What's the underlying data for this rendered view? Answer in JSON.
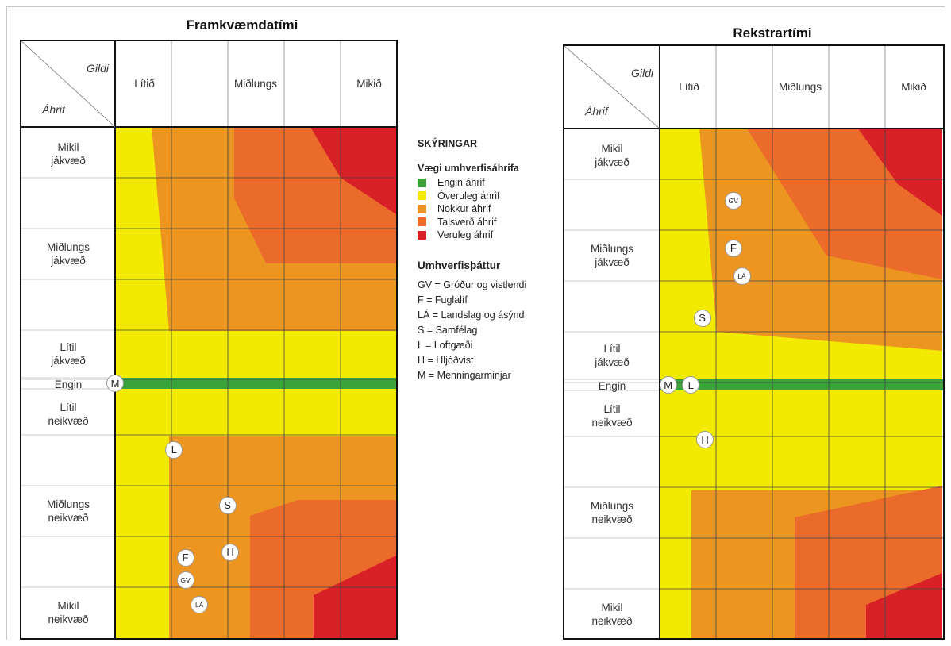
{
  "corner": {
    "top": "Gildi",
    "bottom": "Áhrif"
  },
  "columns": [
    "Lítið",
    "Miðlungs",
    "Mikið"
  ],
  "rows": [
    "Mikil\njákvæð",
    "Miðlungs\njákvæð",
    "Lítil\njákvæð",
    "Engin",
    "Lítil\nneikvæð",
    "Miðlungs\nneikvæð",
    "Mikil\nneikvæð"
  ],
  "colors": {
    "engin": "#3aa33a",
    "overuleg": "#f2ea00",
    "nokkur": "#ec9621",
    "talsverd": "#ea6b2a",
    "veruleg": "#d82027"
  },
  "legend": {
    "heading": "SKÝRINGAR",
    "weight_heading": "Vægi umhverfisáhrifa",
    "items": [
      {
        "label": "Engin áhrif",
        "color": "#3aa33a"
      },
      {
        "label": "Óveruleg áhrif",
        "color": "#f2ea00"
      },
      {
        "label": "Nokkur áhrif",
        "color": "#ec9621"
      },
      {
        "label": "Talsverð áhrif",
        "color": "#ea6b2a"
      },
      {
        "label": "Veruleg áhrif",
        "color": "#d82027"
      }
    ],
    "factor_heading": "Umhverfisþáttur",
    "factors": [
      "GV = Gróður og vistlendi",
      "F = Fuglalíf",
      "LÁ = Landslag og ásýnd",
      "S = Samfélag",
      "L = Loftgæði",
      "H = Hljóðvist",
      "M = Menningarminjar"
    ]
  },
  "chart_data": [
    {
      "type": "scatter",
      "title": "Framkvæmdatími",
      "xlabel": "Gildi",
      "ylabel": "Áhrif",
      "points": [
        {
          "label": "M",
          "x": 0.0,
          "y": 0.0
        },
        {
          "label": "L",
          "x": 1.05,
          "y": -1.2
        },
        {
          "label": "S",
          "x": 2.0,
          "y": -2.2
        },
        {
          "label": "H",
          "x": 2.05,
          "y": -3.05
        },
        {
          "label": "F",
          "x": 1.25,
          "y": -3.15
        },
        {
          "label": "GV",
          "x": 1.25,
          "y": -3.55
        },
        {
          "label": "LÁ",
          "x": 1.5,
          "y": -4.0
        }
      ]
    },
    {
      "type": "scatter",
      "title": "Rekstrartími",
      "xlabel": "Gildi",
      "ylabel": "Áhrif",
      "points": [
        {
          "label": "GV",
          "x": 1.3,
          "y": 3.3
        },
        {
          "label": "F",
          "x": 1.3,
          "y": 2.45
        },
        {
          "label": "LÁ",
          "x": 1.45,
          "y": 1.95
        },
        {
          "label": "S",
          "x": 0.75,
          "y": 1.2
        },
        {
          "label": "M",
          "x": 0.15,
          "y": 0.0
        },
        {
          "label": "L",
          "x": 0.55,
          "y": 0.0
        },
        {
          "label": "H",
          "x": 0.8,
          "y": -1.0
        }
      ]
    }
  ]
}
